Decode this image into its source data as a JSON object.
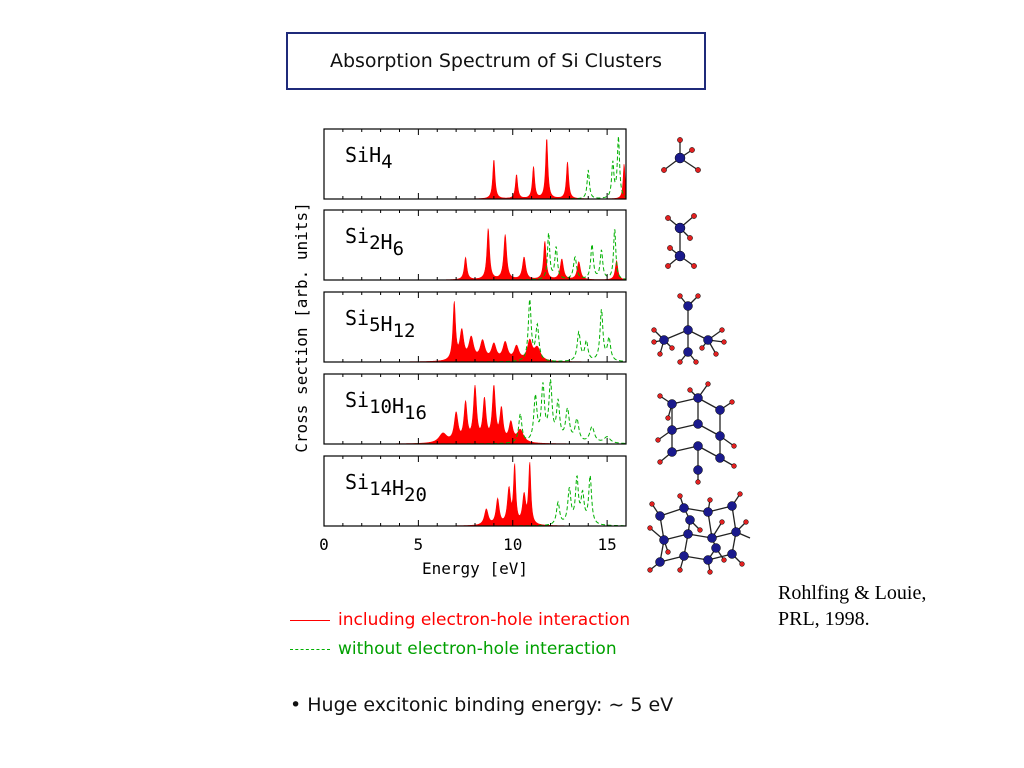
{
  "slide": {
    "title": "Absorption Spectrum of Si Clusters",
    "legend": {
      "red_label": "including electron-hole interaction",
      "green_label": "without electron-hole interaction",
      "red_color": "#ff0000",
      "green_color": "#00b000"
    },
    "bullet": {
      "marker": "•",
      "text": "Huge excitonic binding energy:  ∼ 5 eV"
    },
    "citation": {
      "line1": "Rohlfing & Louie,",
      "line2": "PRL, 1998."
    }
  },
  "chart_data": {
    "type": "area",
    "xlabel": "Energy [eV]",
    "ylabel": "Cross section [arb. units]",
    "xlim": [
      0,
      16
    ],
    "x_ticks": [
      0,
      5,
      10,
      15
    ],
    "panels": [
      {
        "label_base": "SiH",
        "label_parts": [
          [
            "Si",
            ""
          ],
          [
            "H",
            "4"
          ]
        ],
        "red_peaks": [
          [
            9.0,
            0.62,
            0.07
          ],
          [
            10.2,
            0.38,
            0.07
          ],
          [
            11.1,
            0.5,
            0.07
          ],
          [
            11.8,
            0.95,
            0.07
          ],
          [
            12.9,
            0.58,
            0.07
          ],
          [
            15.9,
            0.55,
            0.06
          ]
        ],
        "green_peaks": [
          [
            14.0,
            0.45,
            0.07
          ],
          [
            15.6,
            0.95,
            0.07
          ],
          [
            15.3,
            0.55,
            0.07
          ]
        ]
      },
      {
        "label_parts": [
          [
            "Si",
            "2"
          ],
          [
            "H",
            "6"
          ]
        ],
        "red_peaks": [
          [
            7.5,
            0.35,
            0.08
          ],
          [
            8.7,
            0.8,
            0.08
          ],
          [
            9.6,
            0.7,
            0.09
          ],
          [
            10.6,
            0.35,
            0.1
          ],
          [
            11.7,
            0.6,
            0.08
          ],
          [
            12.6,
            0.32,
            0.1
          ],
          [
            13.5,
            0.28,
            0.1
          ],
          [
            15.5,
            0.3,
            0.08
          ]
        ],
        "green_peaks": [
          [
            11.9,
            0.72,
            0.07
          ],
          [
            12.3,
            0.5,
            0.08
          ],
          [
            14.2,
            0.55,
            0.08
          ],
          [
            14.7,
            0.45,
            0.08
          ],
          [
            15.4,
            0.8,
            0.07
          ],
          [
            13.3,
            0.35,
            0.1
          ]
        ]
      },
      {
        "label_parts": [
          [
            "Si",
            "5"
          ],
          [
            "H",
            "12"
          ]
        ],
        "red_peaks": [
          [
            6.9,
            0.9,
            0.08
          ],
          [
            7.3,
            0.45,
            0.12
          ],
          [
            7.8,
            0.35,
            0.15
          ],
          [
            8.4,
            0.3,
            0.15
          ],
          [
            9.0,
            0.25,
            0.15
          ],
          [
            9.6,
            0.28,
            0.15
          ],
          [
            10.2,
            0.22,
            0.15
          ],
          [
            10.9,
            0.3,
            0.15
          ],
          [
            11.3,
            0.2,
            0.2
          ]
        ],
        "green_peaks": [
          [
            10.9,
            0.95,
            0.09
          ],
          [
            11.3,
            0.55,
            0.1
          ],
          [
            13.5,
            0.45,
            0.1
          ],
          [
            13.9,
            0.3,
            0.1
          ],
          [
            14.7,
            0.8,
            0.09
          ],
          [
            15.1,
            0.35,
            0.1
          ]
        ]
      },
      {
        "label_parts": [
          [
            "Si",
            "10"
          ],
          [
            "H",
            "16"
          ]
        ],
        "red_peaks": [
          [
            6.3,
            0.15,
            0.25
          ],
          [
            7.0,
            0.45,
            0.12
          ],
          [
            7.5,
            0.6,
            0.1
          ],
          [
            8.0,
            0.85,
            0.1
          ],
          [
            8.5,
            0.65,
            0.1
          ],
          [
            9.0,
            0.85,
            0.1
          ],
          [
            9.4,
            0.5,
            0.1
          ],
          [
            9.9,
            0.3,
            0.12
          ],
          [
            10.4,
            0.2,
            0.2
          ]
        ],
        "green_peaks": [
          [
            10.4,
            0.45,
            0.1
          ],
          [
            11.2,
            0.7,
            0.1
          ],
          [
            11.6,
            0.85,
            0.1
          ],
          [
            12.0,
            0.9,
            0.1
          ],
          [
            12.4,
            0.6,
            0.1
          ],
          [
            12.9,
            0.5,
            0.12
          ],
          [
            13.4,
            0.35,
            0.12
          ],
          [
            14.2,
            0.25,
            0.15
          ],
          [
            15.0,
            0.1,
            0.2
          ]
        ]
      },
      {
        "label_parts": [
          [
            "Si",
            "14"
          ],
          [
            "H",
            "20"
          ]
        ],
        "red_peaks": [
          [
            8.6,
            0.25,
            0.12
          ],
          [
            9.2,
            0.4,
            0.1
          ],
          [
            9.8,
            0.55,
            0.1
          ],
          [
            10.1,
            0.9,
            0.07
          ],
          [
            10.6,
            0.45,
            0.1
          ],
          [
            10.9,
            0.95,
            0.07
          ]
        ],
        "green_peaks": [
          [
            12.4,
            0.35,
            0.1
          ],
          [
            13.0,
            0.55,
            0.1
          ],
          [
            13.4,
            0.7,
            0.09
          ],
          [
            13.7,
            0.45,
            0.1
          ],
          [
            14.1,
            0.75,
            0.09
          ]
        ]
      }
    ]
  }
}
